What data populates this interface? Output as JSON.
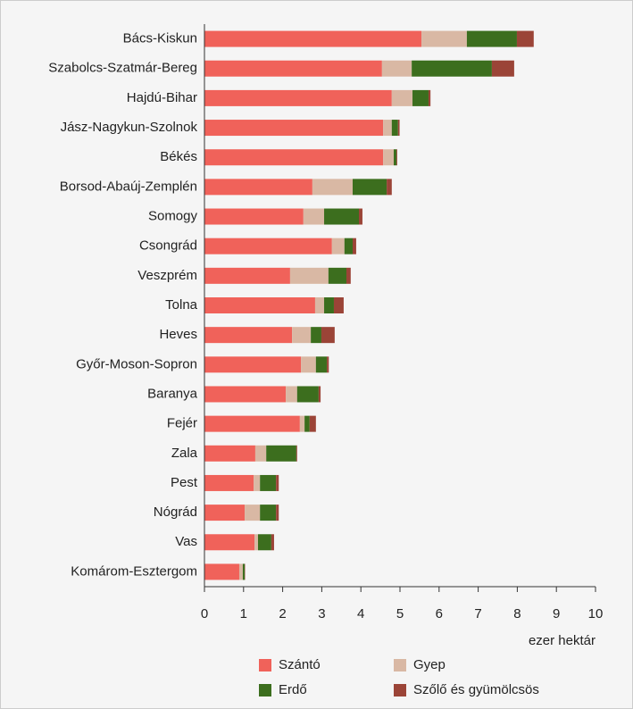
{
  "chart_data": {
    "type": "stacked-barh",
    "categories": [
      "Bács-Kiskun",
      "Szabolcs-Szatmár-Bereg",
      "Hajdú-Bihar",
      "Jász-Nagykun-Szolnok",
      "Békés",
      "Borsod-Abaúj-Zemplén",
      "Somogy",
      "Csongrád",
      "Veszprém",
      "Tolna",
      "Heves",
      "Győr-Moson-Sopron",
      "Baranya",
      "Fejér",
      "Zala",
      "Pest",
      "Nógrád",
      "Vas",
      "Komárom-Esztergom"
    ],
    "series": [
      {
        "name": "Szántó",
        "color": "#f0625a",
        "values": [
          5.55,
          4.54,
          4.79,
          4.57,
          4.57,
          2.76,
          2.53,
          3.26,
          2.19,
          2.83,
          2.24,
          2.47,
          2.08,
          2.44,
          1.3,
          1.26,
          1.03,
          1.28,
          0.89
        ]
      },
      {
        "name": "Gyep",
        "color": "#d9b8a4",
        "values": [
          1.16,
          0.76,
          0.53,
          0.22,
          0.27,
          1.03,
          0.53,
          0.32,
          0.98,
          0.23,
          0.48,
          0.38,
          0.29,
          0.12,
          0.28,
          0.16,
          0.39,
          0.09,
          0.09
        ]
      },
      {
        "name": "Erdő",
        "color": "#3c6e1e",
        "values": [
          1.28,
          2.05,
          0.41,
          0.16,
          0.07,
          0.87,
          0.89,
          0.21,
          0.46,
          0.25,
          0.27,
          0.28,
          0.55,
          0.13,
          0.77,
          0.41,
          0.41,
          0.34,
          0.05
        ]
      },
      {
        "name": "Szőlő és gyümölcsös",
        "color": "#9b4437",
        "values": [
          0.43,
          0.57,
          0.05,
          0.04,
          0.02,
          0.13,
          0.09,
          0.09,
          0.11,
          0.25,
          0.34,
          0.05,
          0.05,
          0.16,
          0.02,
          0.07,
          0.07,
          0.07,
          0.01
        ]
      }
    ],
    "xlabel": "ezer hektár",
    "xlim": [
      0,
      10
    ],
    "xticks": [
      0,
      1,
      2,
      3,
      4,
      5,
      6,
      7,
      8,
      9,
      10
    ]
  }
}
